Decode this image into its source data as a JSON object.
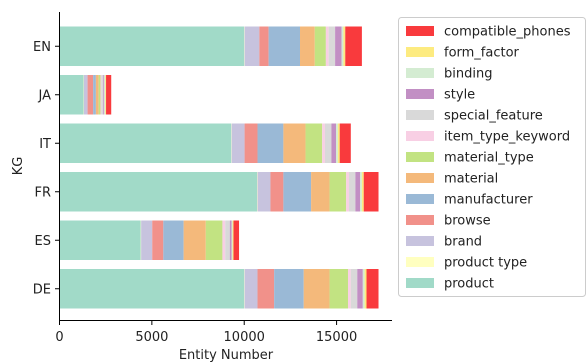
{
  "chart_data": {
    "type": "bar",
    "orientation": "horizontal",
    "stacked": true,
    "xlabel": "Entity Number",
    "ylabel": "KG",
    "xlim": [
      0,
      18000
    ],
    "xticks": [
      0,
      5000,
      10000,
      15000
    ],
    "grid": false,
    "legend_position": "right",
    "categories": [
      "EN",
      "JA",
      "IT",
      "FR",
      "ES",
      "DE"
    ],
    "series": [
      {
        "name": "product",
        "color": "#a1dac8",
        "values": [
          10000,
          1300,
          9300,
          10700,
          4400,
          10000
        ]
      },
      {
        "name": "product type",
        "color": "#ffffc0",
        "values": [
          20,
          20,
          20,
          20,
          20,
          20
        ]
      },
      {
        "name": "brand",
        "color": "#c7c3de",
        "values": [
          800,
          200,
          700,
          700,
          600,
          700
        ]
      },
      {
        "name": "browse",
        "color": "#f1918a",
        "values": [
          500,
          300,
          700,
          700,
          600,
          900
        ]
      },
      {
        "name": "manufacturer",
        "color": "#9ab9d6",
        "values": [
          1700,
          150,
          1400,
          1500,
          1100,
          1600
        ]
      },
      {
        "name": "material",
        "color": "#f4b97b",
        "values": [
          800,
          150,
          1200,
          1000,
          1200,
          1400
        ]
      },
      {
        "name": "material_type",
        "color": "#c2e382",
        "values": [
          600,
          100,
          900,
          900,
          900,
          1000
        ]
      },
      {
        "name": "item_type_keyword",
        "color": "#f8cfe4",
        "values": [
          150,
          50,
          150,
          150,
          150,
          150
        ]
      },
      {
        "name": "special_feature",
        "color": "#d9d9d9",
        "values": [
          350,
          100,
          350,
          350,
          250,
          350
        ]
      },
      {
        "name": "style",
        "color": "#c28fc4",
        "values": [
          350,
          50,
          250,
          250,
          100,
          300
        ]
      },
      {
        "name": "binding",
        "color": "#d4ecd2",
        "values": [
          100,
          60,
          100,
          100,
          50,
          100
        ]
      },
      {
        "name": "form_factor",
        "color": "#fdeb80",
        "values": [
          100,
          40,
          100,
          100,
          50,
          100
        ]
      },
      {
        "name": "compatible_phones",
        "color": "#f93a3d",
        "values": [
          900,
          280,
          600,
          800,
          300,
          650
        ]
      }
    ]
  }
}
